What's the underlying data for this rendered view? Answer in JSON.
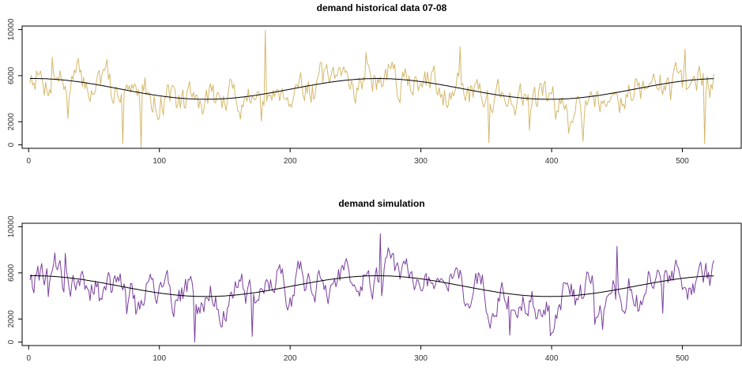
{
  "chart_data": [
    {
      "type": "line",
      "title": "demand historical data 07-08",
      "xlabel": "",
      "ylabel": "",
      "xlim": [
        -5,
        545
      ],
      "ylim": [
        -300,
        10300
      ],
      "xticks": [
        0,
        100,
        200,
        300,
        400,
        500
      ],
      "yticks": [
        0,
        2000,
        6000,
        10000
      ],
      "grid": false,
      "legend": "none",
      "x_range": [
        1,
        524
      ],
      "series": [
        {
          "role": "trend",
          "color": "#000000",
          "mean": 4850,
          "amplitude": 900,
          "period": 263,
          "peak_at": 4,
          "x_range": [
            1,
            524
          ]
        },
        {
          "role": "observed",
          "color": "#d4b86a",
          "range": [
            -300,
            9900
          ],
          "mean": 4850,
          "num_points": 524,
          "spike": {
            "x": 181,
            "y": 9900
          },
          "dips": [
            {
              "x": 72,
              "y": 100
            },
            {
              "x": 86,
              "y": -300
            },
            {
              "x": 352,
              "y": 200
            },
            {
              "x": 517,
              "y": 100
            }
          ],
          "peaks": [
            {
              "x": 18,
              "y": 7600
            },
            {
              "x": 60,
              "y": 7400
            },
            {
              "x": 258,
              "y": 8000
            },
            {
              "x": 330,
              "y": 8500
            },
            {
              "x": 502,
              "y": 8300
            }
          ]
        }
      ]
    },
    {
      "type": "line",
      "title": "demand simulation",
      "xlabel": "",
      "ylabel": "",
      "xlim": [
        -5,
        545
      ],
      "ylim": [
        -300,
        10300
      ],
      "xticks": [
        0,
        100,
        200,
        300,
        400,
        500
      ],
      "yticks": [
        0,
        2000,
        6000,
        10000
      ],
      "grid": false,
      "legend": "none",
      "x_range": [
        1,
        524
      ],
      "series": [
        {
          "role": "trend",
          "color": "#000000",
          "mean": 4850,
          "amplitude": 900,
          "period": 263,
          "peak_at": 4,
          "x_range": [
            1,
            524
          ]
        },
        {
          "role": "simulated",
          "color": "#7a3f9e",
          "range": [
            0,
            9400
          ],
          "mean": 4850,
          "num_points": 524,
          "peaks": [
            {
              "x": 28,
              "y": 7700
            },
            {
              "x": 269,
              "y": 9400
            },
            {
              "x": 450,
              "y": 8300
            }
          ],
          "dips": [
            {
              "x": 127,
              "y": 0
            },
            {
              "x": 171,
              "y": 500
            },
            {
              "x": 368,
              "y": 600
            },
            {
              "x": 485,
              "y": 2500
            }
          ]
        }
      ]
    }
  ]
}
